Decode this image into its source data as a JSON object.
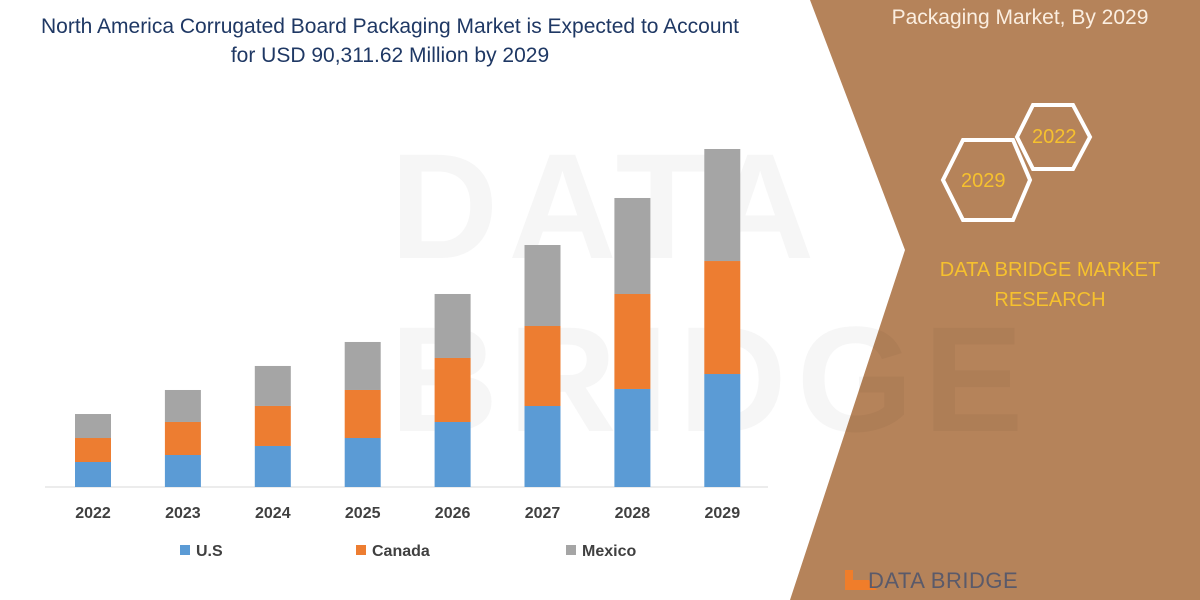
{
  "title": "North America Corrugated Board Packaging Market is Expected to Account for USD 90,311.62 Million by 2029",
  "side_panel": {
    "title": "Packaging Market, By 2029",
    "hex_years": [
      "2022",
      "2029"
    ],
    "brand": "DATA BRIDGE MARKET RESEARCH",
    "logo_text": "DATA BRIDGE",
    "color": "#b5835a",
    "accent": "#f6c12e"
  },
  "chart_data": {
    "type": "bar",
    "stacked": true,
    "unit": "USD Million (estimated)",
    "categories": [
      "2022",
      "2023",
      "2024",
      "2025",
      "2026",
      "2027",
      "2028",
      "2029"
    ],
    "series": [
      {
        "name": "U.S",
        "color": "#5b9bd5",
        "values": [
          6680,
          8550,
          10960,
          13090,
          17370,
          21640,
          26190,
          30190
        ]
      },
      {
        "name": "Canada",
        "color": "#ed7d31",
        "values": [
          6410,
          8820,
          10690,
          12830,
          17100,
          21380,
          25380,
          30190
        ]
      },
      {
        "name": "Mexico",
        "color": "#a5a5a5",
        "values": [
          6410,
          8550,
          10690,
          12830,
          17100,
          21640,
          25650,
          29930
        ]
      }
    ],
    "ylim": [
      0,
      90311.62
    ],
    "grid": false,
    "legend": "bottom"
  }
}
